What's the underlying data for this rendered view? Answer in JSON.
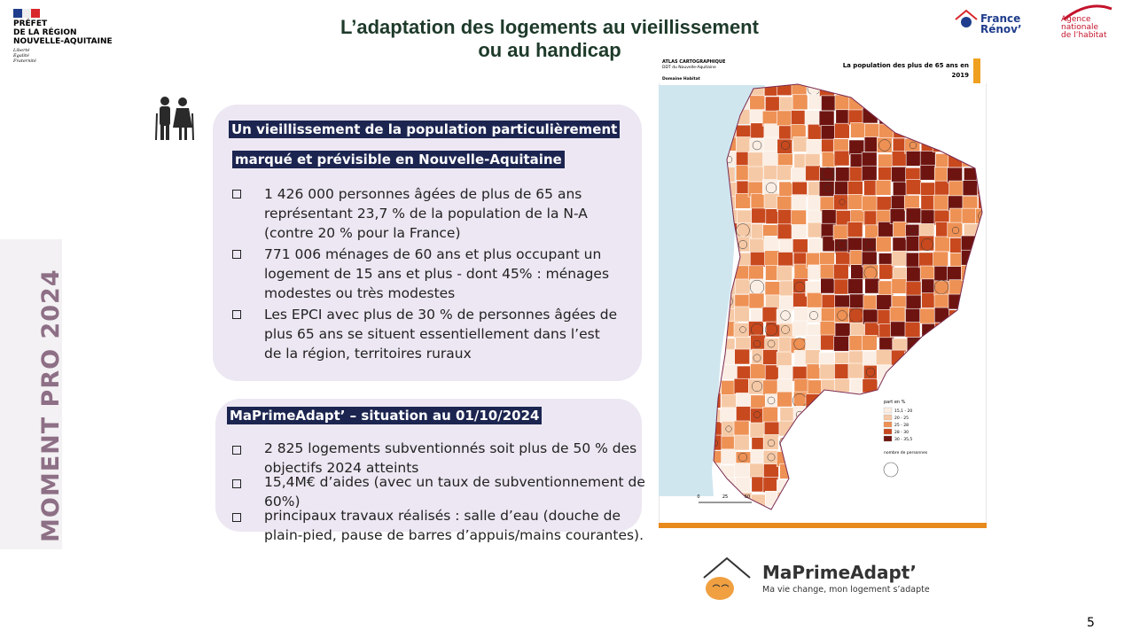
{
  "header": {
    "prefet": [
      "PRÉFET",
      "DE LA RÉGION",
      "NOUVELLE-AQUITAINE"
    ],
    "motto": [
      "Liberté",
      "Égalité",
      "Fraternité"
    ],
    "title": [
      "L’adaptation des logements au vieillissement",
      "ou au handicap"
    ],
    "logos": {
      "france_renov": [
        "France",
        "Rénov’"
      ],
      "anah": [
        "Agence",
        "nationale",
        "de l’habitat"
      ]
    }
  },
  "side_label": "MOMENT PRO 2024",
  "box1": {
    "heading": [
      "Un vieillissement de la population particulièrement",
      "marqué et prévisible en Nouvelle-Aquitaine"
    ],
    "bullets": [
      [
        "1 426 000 personnes âgées de plus de 65 ans",
        "représentant 23,7 % de la population de la N-A",
        "(contre 20 % pour la France)"
      ],
      [
        "771 006 ménages de 60 ans et plus occupant un",
        "logement de 15 ans et plus - dont 45% : ménages",
        "modestes ou très modestes"
      ],
      [
        "Les EPCI avec plus de 30 % de personnes âgées de",
        "plus 65 ans se situent essentiellement dans l’est",
        "de la région, territoires ruraux"
      ]
    ]
  },
  "box2": {
    "heading": "MaPrimeAdapt’ – situation au 01/10/2024",
    "bullets": [
      [
        "2 825 logements subventionnés soit plus de 50 % des",
        "objectifs 2024 atteints"
      ],
      [
        "15,4M€ d’aides (avec un taux de subventionnement de",
        "60%)"
      ],
      [
        " principaux travaux réalisés :  salle d’eau (douche de",
        "plain-pied, pause de barres d’appuis/mains courantes)."
      ]
    ]
  },
  "map": {
    "atlas": [
      "ATLAS CARTOGRAPHIQUE",
      "DDT du Nouvelle-Aquitaine"
    ],
    "domain": "Domaine Habitat",
    "title": [
      "La population des plus de 65 ans en",
      "2019"
    ],
    "legend": {
      "title": "part en %",
      "items": [
        {
          "label": "15,1 - 20",
          "color": "#fbeee4"
        },
        {
          "label": "20 - 25",
          "color": "#f6c9a6"
        },
        {
          "label": "25 - 28",
          "color": "#ee9155"
        },
        {
          "label": "28 - 30",
          "color": "#c8491e"
        },
        {
          "label": "30 - 35,5",
          "color": "#6e1410"
        }
      ],
      "size_title": "nombre de personnes"
    },
    "scale": [
      "0",
      "25",
      "50"
    ]
  },
  "footer_logo": {
    "name": "MaPrimeAdapt’",
    "tagline": "Ma vie change, mon logement s’adapte"
  },
  "page_number": "5"
}
